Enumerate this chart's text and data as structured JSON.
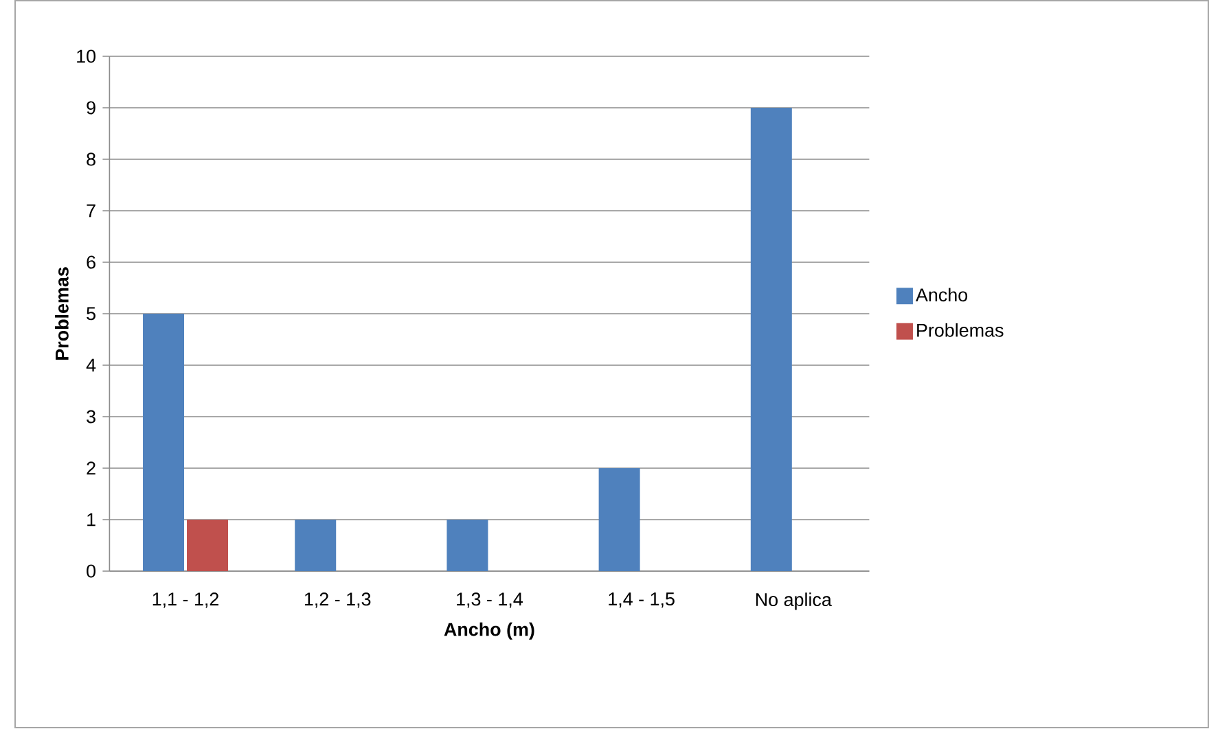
{
  "chart_data": {
    "type": "bar",
    "xlabel": "Ancho (m)",
    "ylabel": "Problemas",
    "categories": [
      "1,1 - 1,2",
      "1,2 - 1,3",
      "1,3 - 1,4",
      "1,4 - 1,5",
      "No aplica"
    ],
    "series": [
      {
        "name": "Ancho",
        "color": "#4f81bd",
        "values": [
          5,
          1,
          1,
          2,
          9
        ]
      },
      {
        "name": "Problemas",
        "color": "#c0504d",
        "values": [
          1,
          null,
          null,
          null,
          null
        ]
      }
    ],
    "ylim": [
      0,
      10
    ],
    "yticks": [
      0,
      1,
      2,
      3,
      4,
      5,
      6,
      7,
      8,
      9,
      10
    ],
    "grid": "y",
    "legend": "right"
  }
}
